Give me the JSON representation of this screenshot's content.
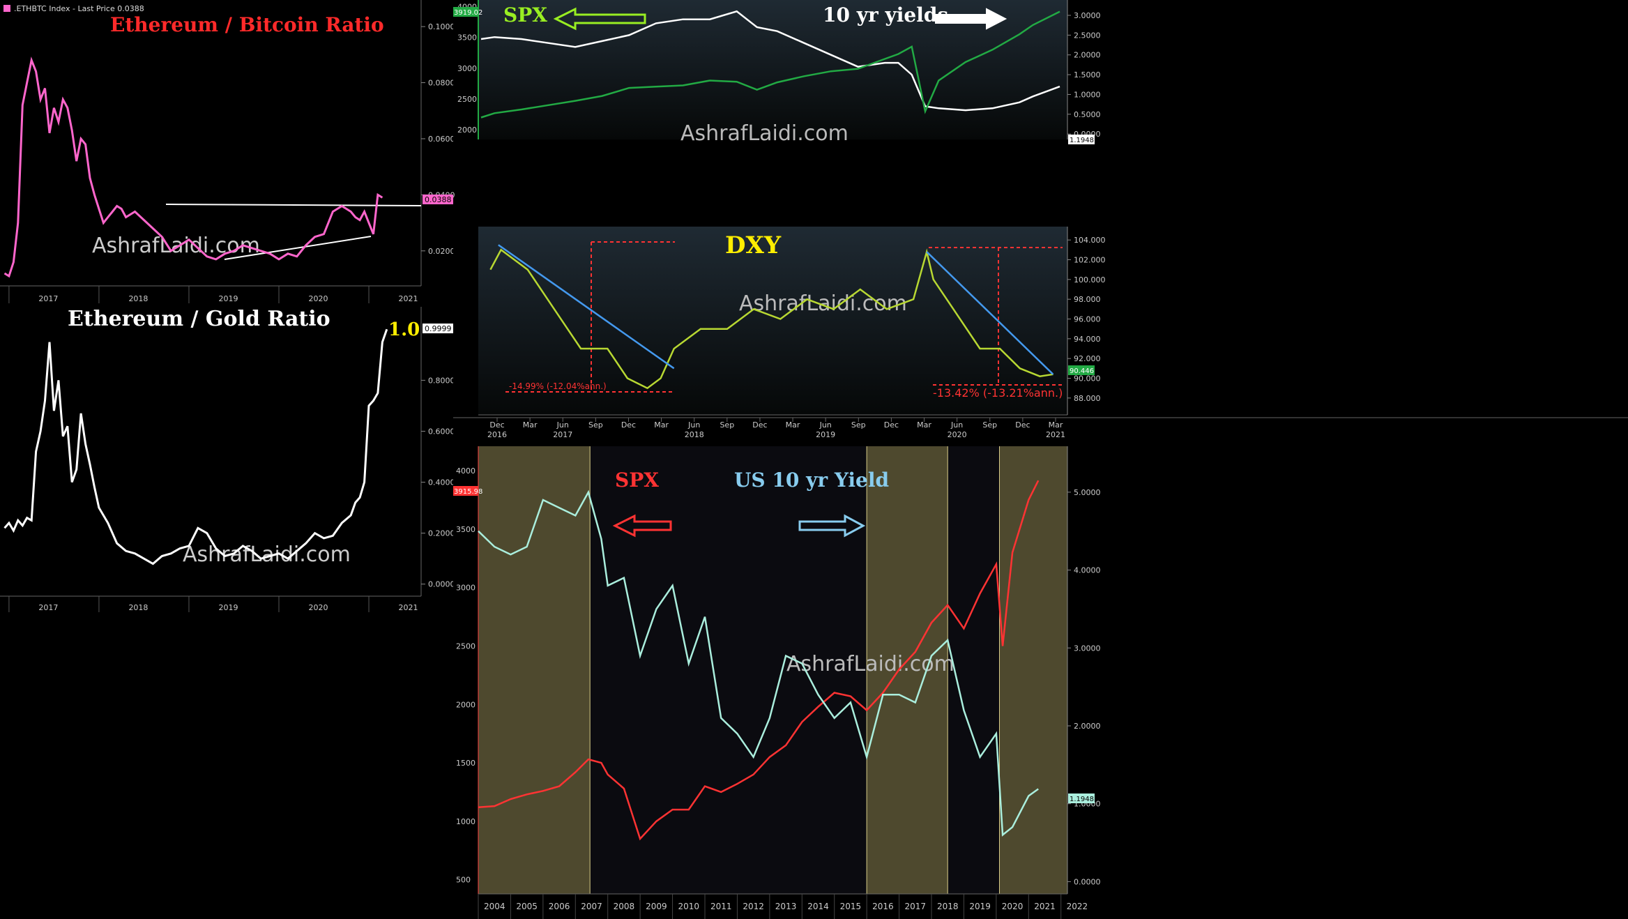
{
  "chart_data": [
    {
      "type": "line",
      "title": "Ethereum / Bitcoin Ratio",
      "header": ".ETHBTC Index - Last Price 0.0388",
      "last_price_label": "0.0388",
      "watermark": "AshrafLaidi.com",
      "x_ticks": [
        "2017",
        "2018",
        "2019",
        "2020",
        "2021"
      ],
      "y_ticks": [
        "0.1000",
        "0.0800",
        "0.0600",
        "0.0400",
        "0.0200"
      ],
      "ylim": [
        0.01,
        0.107
      ],
      "xlim": [
        2016.9,
        2021.55
      ],
      "series": [
        {
          "x": [
            2016.95,
            2017.0,
            2017.05,
            2017.1,
            2017.15,
            2017.2,
            2017.25,
            2017.3,
            2017.35,
            2017.4,
            2017.45,
            2017.5,
            2017.55,
            2017.6,
            2017.65,
            2017.7,
            2017.75,
            2017.8,
            2017.85,
            2017.9,
            2017.95,
            2018.0,
            2018.05,
            2018.1,
            2018.15,
            2018.2,
            2018.25,
            2018.3,
            2018.4,
            2018.5,
            2018.6,
            2018.7,
            2018.8,
            2018.9,
            2019.0,
            2019.1,
            2019.2,
            2019.3,
            2019.4,
            2019.5,
            2019.6,
            2019.7,
            2019.8,
            2019.9,
            2020.0,
            2020.1,
            2020.2,
            2020.3,
            2020.4,
            2020.5,
            2020.6,
            2020.7,
            2020.75,
            2020.8,
            2020.85,
            2020.9,
            2020.95,
            2021.0,
            2021.05,
            2021.1,
            2021.15
          ],
          "y": [
            0.012,
            0.011,
            0.016,
            0.03,
            0.072,
            0.08,
            0.088,
            0.084,
            0.074,
            0.078,
            0.062,
            0.071,
            0.066,
            0.074,
            0.071,
            0.063,
            0.052,
            0.06,
            0.058,
            0.046,
            0.04,
            0.035,
            0.03,
            0.032,
            0.034,
            0.036,
            0.035,
            0.032,
            0.034,
            0.031,
            0.028,
            0.025,
            0.02,
            0.022,
            0.024,
            0.021,
            0.018,
            0.017,
            0.019,
            0.02,
            0.022,
            0.021,
            0.02,
            0.019,
            0.017,
            0.019,
            0.018,
            0.022,
            0.025,
            0.026,
            0.034,
            0.036,
            0.035,
            0.034,
            0.032,
            0.031,
            0.034,
            0.03,
            0.026,
            0.04,
            0.039
          ]
        }
      ]
    },
    {
      "type": "line",
      "title": "Ethereum / Gold  Ratio",
      "end_label": "1.0",
      "last_price_label": "0.9999",
      "watermark": "AshrafLaidi.com",
      "x_ticks": [
        "2017",
        "2018",
        "2019",
        "2020",
        "2021"
      ],
      "y_ticks": [
        "0.8000",
        "0.6000",
        "0.4000",
        "0.2000",
        "0.0000"
      ],
      "ylim": [
        -0.02,
        1.02
      ],
      "xlim": [
        2016.9,
        2021.55
      ],
      "series": [
        {
          "x": [
            2016.95,
            2017.0,
            2017.05,
            2017.1,
            2017.15,
            2017.2,
            2017.25,
            2017.3,
            2017.35,
            2017.4,
            2017.45,
            2017.5,
            2017.55,
            2017.6,
            2017.65,
            2017.7,
            2017.75,
            2017.8,
            2017.85,
            2017.9,
            2017.95,
            2018.0,
            2018.1,
            2018.2,
            2018.3,
            2018.4,
            2018.5,
            2018.6,
            2018.7,
            2018.8,
            2018.9,
            2019.0,
            2019.1,
            2019.2,
            2019.3,
            2019.4,
            2019.5,
            2019.6,
            2019.7,
            2019.8,
            2019.9,
            2020.0,
            2020.1,
            2020.2,
            2020.3,
            2020.4,
            2020.5,
            2020.6,
            2020.7,
            2020.8,
            2020.85,
            2020.9,
            2020.95,
            2021.0,
            2021.05,
            2021.1,
            2021.15,
            2021.2
          ],
          "y": [
            0.22,
            0.24,
            0.21,
            0.25,
            0.23,
            0.26,
            0.25,
            0.52,
            0.6,
            0.72,
            0.95,
            0.68,
            0.8,
            0.58,
            0.62,
            0.4,
            0.45,
            0.67,
            0.55,
            0.47,
            0.38,
            0.3,
            0.24,
            0.16,
            0.13,
            0.12,
            0.1,
            0.08,
            0.11,
            0.12,
            0.14,
            0.15,
            0.22,
            0.2,
            0.14,
            0.11,
            0.12,
            0.15,
            0.13,
            0.1,
            0.11,
            0.12,
            0.1,
            0.13,
            0.16,
            0.2,
            0.18,
            0.19,
            0.24,
            0.27,
            0.32,
            0.34,
            0.4,
            0.7,
            0.72,
            0.75,
            0.95,
            1.0
          ]
        }
      ]
    },
    {
      "type": "line",
      "labels": {
        "left": "SPX",
        "right": "10 yr yields"
      },
      "watermark": "AshrafLaidi.com",
      "left_axis_ticks": [
        "4000",
        "3500",
        "3000",
        "2500",
        "2000"
      ],
      "right_axis_ticks": [
        "3.0000",
        "2.5000",
        "2.0000",
        "1.5000",
        "1.0000",
        "0.5000",
        "0.0000"
      ],
      "left_last": "3919.02",
      "right_last": "1.1948",
      "ylim_left": [
        1900,
        4050
      ],
      "ylim_right": [
        -0.05,
        3.3
      ],
      "x": [
        2016.9,
        2017.0,
        2017.2,
        2017.4,
        2017.6,
        2017.8,
        2018.0,
        2018.2,
        2018.4,
        2018.6,
        2018.8,
        2018.95,
        2019.1,
        2019.3,
        2019.5,
        2019.7,
        2019.9,
        2020.0,
        2020.1,
        2020.2,
        2020.3,
        2020.5,
        2020.7,
        2020.9,
        2021.0,
        2021.2
      ],
      "series": [
        {
          "name": "10 yr yields",
          "axis": "right",
          "color": "#ffffff",
          "values": [
            2.4,
            2.45,
            2.4,
            2.3,
            2.2,
            2.35,
            2.5,
            2.8,
            2.9,
            2.9,
            3.1,
            2.7,
            2.6,
            2.3,
            2.0,
            1.7,
            1.8,
            1.8,
            1.5,
            0.7,
            0.65,
            0.6,
            0.65,
            0.8,
            0.95,
            1.2
          ]
        },
        {
          "name": "SPX",
          "axis": "left",
          "color": "#22aa44",
          "values": [
            2200,
            2270,
            2330,
            2400,
            2470,
            2550,
            2680,
            2700,
            2720,
            2800,
            2780,
            2650,
            2770,
            2870,
            2950,
            2990,
            3150,
            3230,
            3350,
            2300,
            2800,
            3100,
            3300,
            3550,
            3700,
            3919
          ]
        }
      ]
    },
    {
      "type": "line",
      "title": "DXY",
      "watermark": "AshrafLaidi.com",
      "right_axis_ticks": [
        "104.000",
        "102.000",
        "100.000",
        "98.000",
        "96.000",
        "94.000",
        "92.000",
        "90.000",
        "88.000"
      ],
      "last_label": "90.446",
      "annotations": [
        "-14.99% (-12.04%ann.)",
        "-13.42% (-13.21%ann.)"
      ],
      "x_ticks": [
        "Dec",
        "Mar",
        "Jun",
        "Sep",
        "Dec",
        "Mar",
        "Jun",
        "Sep",
        "Dec",
        "Mar",
        "Jun",
        "Sep",
        "Dec",
        "Mar",
        "Jun",
        "Sep",
        "Dec",
        "Mar"
      ],
      "year_labels": [
        "2016",
        "2017",
        "2018",
        "2019",
        "2020",
        "2021"
      ],
      "ylim": [
        87,
        105
      ],
      "x": [
        2016.92,
        2017.0,
        2017.2,
        2017.4,
        2017.6,
        2017.8,
        2017.95,
        2018.1,
        2018.2,
        2018.3,
        2018.5,
        2018.7,
        2018.9,
        2019.1,
        2019.3,
        2019.5,
        2019.7,
        2019.9,
        2020.1,
        2020.2,
        2020.25,
        2020.4,
        2020.6,
        2020.75,
        2020.9,
        2021.05,
        2021.15
      ],
      "values": [
        101,
        103,
        101,
        97,
        93,
        93,
        90,
        89,
        90,
        93,
        95,
        95,
        97,
        96,
        98,
        97,
        99,
        97,
        98,
        102.8,
        100,
        97,
        93,
        93,
        91,
        90.2,
        90.4
      ],
      "trendlines": [
        [
          [
            2016.98,
            103.5
          ],
          [
            2018.3,
            91
          ]
        ],
        [
          [
            2020.2,
            102.8
          ],
          [
            2021.15,
            90.4
          ]
        ]
      ]
    },
    {
      "type": "line",
      "labels": {
        "left": "SPX",
        "right": "US 10 yr Yield"
      },
      "watermark": "AshrafLaidi.com",
      "left_axis_ticks": [
        "4000",
        "3500",
        "3000",
        "2500",
        "2000",
        "1500",
        "1000",
        "500"
      ],
      "right_axis_ticks": [
        "5.0000",
        "4.0000",
        "3.0000",
        "2.0000",
        "1.0000",
        "0.0000"
      ],
      "left_last": "3915.98",
      "right_last": "1.1948",
      "x_ticks": [
        "2004",
        "2005",
        "2006",
        "2007",
        "2008",
        "2009",
        "2010",
        "2011",
        "2012",
        "2013",
        "2014",
        "2015",
        "2016",
        "2017",
        "2018",
        "2019",
        "2020",
        "2021",
        "2022"
      ],
      "xlim": [
        2004.0,
        2022.2
      ],
      "ylim_left": [
        450,
        4150
      ],
      "ylim_right": [
        -0.05,
        5.5
      ],
      "highlights": [
        [
          2004.0,
          2007.45
        ],
        [
          2016.0,
          2018.5
        ],
        [
          2020.1,
          2022.2
        ]
      ],
      "x": [
        2004.0,
        2004.5,
        2005,
        2005.5,
        2006,
        2006.5,
        2007,
        2007.4,
        2007.8,
        2008,
        2008.5,
        2009,
        2009.5,
        2010,
        2010.5,
        2011,
        2011.5,
        2012,
        2012.5,
        2013,
        2013.5,
        2014,
        2014.5,
        2015,
        2015.5,
        2016,
        2016.5,
        2017,
        2017.5,
        2018,
        2018.5,
        2019,
        2019.5,
        2020,
        2020.2,
        2020.5,
        2021,
        2021.3
      ],
      "series": [
        {
          "name": "SPX",
          "axis": "left",
          "color": "#ff3333",
          "values": [
            1120,
            1130,
            1190,
            1230,
            1260,
            1300,
            1420,
            1530,
            1500,
            1400,
            1280,
            850,
            1000,
            1100,
            1100,
            1300,
            1250,
            1320,
            1400,
            1550,
            1650,
            1850,
            1980,
            2100,
            2070,
            1950,
            2100,
            2300,
            2450,
            2700,
            2850,
            2650,
            2950,
            3200,
            2500,
            3300,
            3750,
            3916
          ]
        },
        {
          "name": "US 10 yr Yield",
          "axis": "right",
          "color": "#aaeedd",
          "values": [
            4.5,
            4.3,
            4.2,
            4.3,
            4.9,
            4.8,
            4.7,
            5.0,
            4.4,
            3.8,
            3.9,
            2.9,
            3.5,
            3.8,
            2.8,
            3.4,
            2.1,
            1.9,
            1.6,
            2.1,
            2.9,
            2.8,
            2.4,
            2.1,
            2.3,
            1.6,
            2.4,
            2.4,
            2.3,
            2.9,
            3.1,
            2.2,
            1.6,
            1.9,
            0.6,
            0.7,
            1.1,
            1.19
          ]
        }
      ]
    }
  ]
}
